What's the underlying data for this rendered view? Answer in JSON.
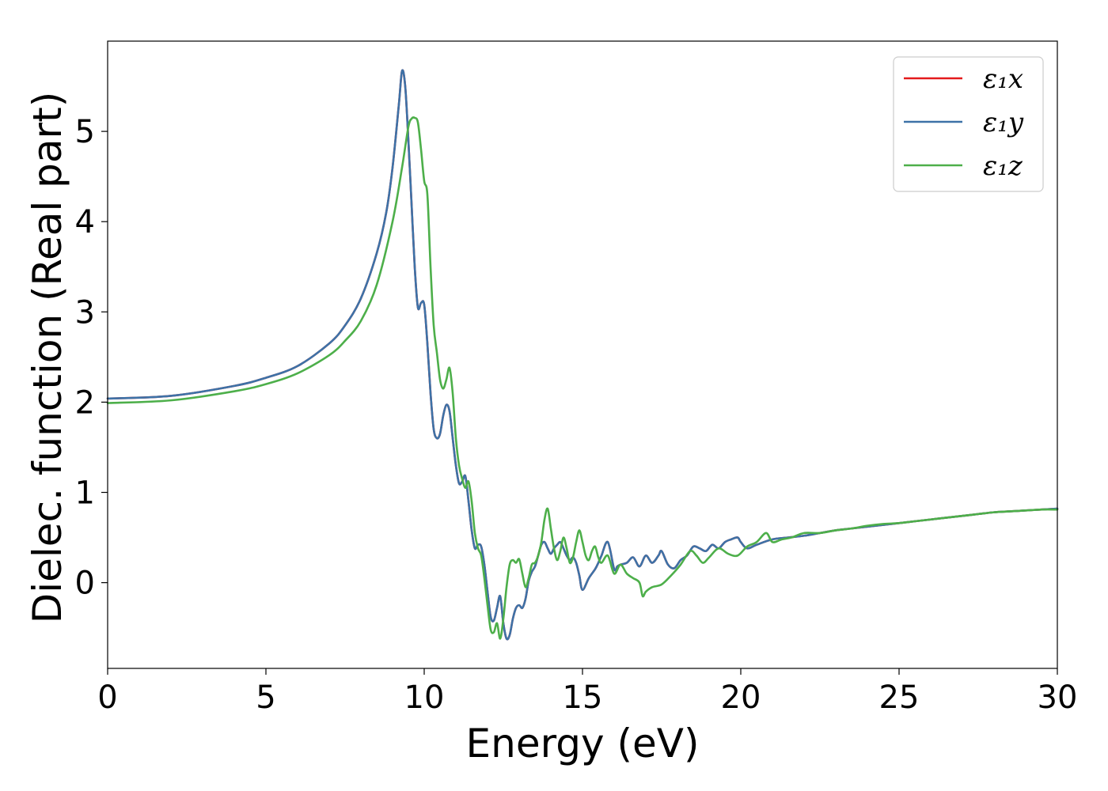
{
  "chart_data": {
    "type": "line",
    "xlabel": "Energy (eV)",
    "ylabel": "Dielec. function (Real part)",
    "xlim": [
      0,
      30
    ],
    "ylim": [
      -0.95,
      6.0
    ],
    "xticks": [
      "0",
      "5",
      "10",
      "15",
      "20",
      "25",
      "30"
    ],
    "yticks": [
      "0",
      "1",
      "2",
      "3",
      "4",
      "5"
    ],
    "grid": false,
    "legend_position": "top-right",
    "series": [
      {
        "name": "ε₁x",
        "color": "#e41a1c",
        "x": [
          0,
          2,
          4,
          5,
          6,
          7,
          7.5,
          8,
          8.5,
          8.8,
          9.0,
          9.2,
          9.3,
          9.4,
          9.5,
          9.6,
          9.7,
          9.8,
          9.9,
          10.0,
          10.1,
          10.2,
          10.3,
          10.4,
          10.5,
          10.6,
          10.7,
          10.8,
          10.9,
          11.0,
          11.1,
          11.2,
          11.3,
          11.4,
          11.5,
          11.6,
          11.7,
          11.8,
          11.9,
          12.0,
          12.1,
          12.2,
          12.3,
          12.4,
          12.5,
          12.6,
          12.7,
          12.8,
          12.9,
          13.0,
          13.1,
          13.2,
          13.3,
          13.4,
          13.5,
          13.6,
          13.7,
          13.8,
          13.9,
          14.0,
          14.1,
          14.2,
          14.3,
          14.4,
          14.5,
          14.6,
          14.7,
          14.8,
          14.9,
          15.0,
          15.2,
          15.4,
          15.5,
          15.6,
          15.8,
          16.0,
          16.1,
          16.2,
          16.4,
          16.6,
          16.8,
          17.0,
          17.2,
          17.4,
          17.5,
          17.7,
          17.9,
          18.1,
          18.3,
          18.5,
          18.7,
          18.9,
          19.1,
          19.3,
          19.5,
          19.7,
          19.9,
          20.0,
          20.2,
          20.5,
          21.0,
          21.5,
          22.0,
          22.5,
          23.0,
          23.5,
          24.0,
          24.5,
          25.0,
          25.5,
          26.0,
          26.5,
          27.0,
          27.5,
          28.0,
          28.5,
          29.0,
          29.5,
          30.0
        ],
        "values": [
          2.04,
          2.07,
          2.18,
          2.27,
          2.4,
          2.65,
          2.85,
          3.15,
          3.65,
          4.1,
          4.6,
          5.3,
          5.67,
          5.5,
          4.9,
          4.2,
          3.5,
          3.05,
          3.1,
          3.08,
          2.65,
          2.1,
          1.7,
          1.6,
          1.65,
          1.85,
          1.97,
          1.9,
          1.6,
          1.3,
          1.1,
          1.12,
          1.18,
          0.9,
          0.58,
          0.38,
          0.42,
          0.4,
          0.2,
          -0.1,
          -0.38,
          -0.42,
          -0.28,
          -0.15,
          -0.45,
          -0.62,
          -0.58,
          -0.4,
          -0.28,
          -0.25,
          -0.28,
          -0.18,
          0.02,
          0.12,
          0.18,
          0.3,
          0.42,
          0.45,
          0.38,
          0.32,
          0.38,
          0.42,
          0.45,
          0.38,
          0.3,
          0.25,
          0.28,
          0.22,
          0.08,
          -0.08,
          0.05,
          0.15,
          0.22,
          0.3,
          0.45,
          0.15,
          0.18,
          0.2,
          0.22,
          0.28,
          0.18,
          0.3,
          0.22,
          0.3,
          0.35,
          0.2,
          0.16,
          0.25,
          0.3,
          0.4,
          0.38,
          0.35,
          0.42,
          0.38,
          0.45,
          0.48,
          0.5,
          0.45,
          0.38,
          0.42,
          0.48,
          0.5,
          0.52,
          0.55,
          0.58,
          0.6,
          0.62,
          0.64,
          0.66,
          0.68,
          0.7,
          0.72,
          0.74,
          0.76,
          0.78,
          0.79,
          0.8,
          0.81,
          0.82
        ]
      },
      {
        "name": "ε₁y",
        "color": "#3d72a7",
        "x": [
          0,
          2,
          4,
          5,
          6,
          7,
          7.5,
          8,
          8.5,
          8.8,
          9.0,
          9.2,
          9.3,
          9.4,
          9.5,
          9.6,
          9.7,
          9.8,
          9.9,
          10.0,
          10.1,
          10.2,
          10.3,
          10.4,
          10.5,
          10.6,
          10.7,
          10.8,
          10.9,
          11.0,
          11.1,
          11.2,
          11.3,
          11.4,
          11.5,
          11.6,
          11.7,
          11.8,
          11.9,
          12.0,
          12.1,
          12.2,
          12.3,
          12.4,
          12.5,
          12.6,
          12.7,
          12.8,
          12.9,
          13.0,
          13.1,
          13.2,
          13.3,
          13.4,
          13.5,
          13.6,
          13.7,
          13.8,
          13.9,
          14.0,
          14.1,
          14.2,
          14.3,
          14.4,
          14.5,
          14.6,
          14.7,
          14.8,
          14.9,
          15.0,
          15.2,
          15.4,
          15.5,
          15.6,
          15.8,
          16.0,
          16.1,
          16.2,
          16.4,
          16.6,
          16.8,
          17.0,
          17.2,
          17.4,
          17.5,
          17.7,
          17.9,
          18.1,
          18.3,
          18.5,
          18.7,
          18.9,
          19.1,
          19.3,
          19.5,
          19.7,
          19.9,
          20.0,
          20.2,
          20.5,
          21.0,
          21.5,
          22.0,
          22.5,
          23.0,
          23.5,
          24.0,
          24.5,
          25.0,
          25.5,
          26.0,
          26.5,
          27.0,
          27.5,
          28.0,
          28.5,
          29.0,
          29.5,
          30.0
        ],
        "values": [
          2.04,
          2.07,
          2.18,
          2.27,
          2.4,
          2.65,
          2.85,
          3.15,
          3.65,
          4.1,
          4.6,
          5.3,
          5.67,
          5.5,
          4.9,
          4.2,
          3.5,
          3.05,
          3.1,
          3.08,
          2.65,
          2.1,
          1.7,
          1.6,
          1.65,
          1.85,
          1.97,
          1.9,
          1.6,
          1.3,
          1.1,
          1.12,
          1.18,
          0.9,
          0.58,
          0.38,
          0.42,
          0.4,
          0.2,
          -0.1,
          -0.38,
          -0.42,
          -0.28,
          -0.15,
          -0.45,
          -0.62,
          -0.58,
          -0.4,
          -0.28,
          -0.25,
          -0.28,
          -0.18,
          0.02,
          0.12,
          0.18,
          0.3,
          0.42,
          0.45,
          0.38,
          0.32,
          0.38,
          0.42,
          0.45,
          0.38,
          0.3,
          0.25,
          0.28,
          0.22,
          0.08,
          -0.08,
          0.05,
          0.15,
          0.22,
          0.3,
          0.45,
          0.15,
          0.18,
          0.2,
          0.22,
          0.28,
          0.18,
          0.3,
          0.22,
          0.3,
          0.35,
          0.2,
          0.16,
          0.25,
          0.3,
          0.4,
          0.38,
          0.35,
          0.42,
          0.38,
          0.45,
          0.48,
          0.5,
          0.45,
          0.38,
          0.42,
          0.48,
          0.5,
          0.52,
          0.55,
          0.58,
          0.6,
          0.62,
          0.64,
          0.66,
          0.68,
          0.7,
          0.72,
          0.74,
          0.76,
          0.78,
          0.79,
          0.8,
          0.81,
          0.82
        ]
      },
      {
        "name": "ε₁z",
        "color": "#4daf4a",
        "x": [
          0,
          2,
          4,
          5,
          6,
          7,
          7.5,
          8,
          8.5,
          9.0,
          9.3,
          9.5,
          9.6,
          9.7,
          9.8,
          9.9,
          10.0,
          10.1,
          10.2,
          10.3,
          10.4,
          10.5,
          10.6,
          10.7,
          10.8,
          10.9,
          11.0,
          11.1,
          11.2,
          11.3,
          11.4,
          11.5,
          11.6,
          11.7,
          11.8,
          11.9,
          12.0,
          12.1,
          12.2,
          12.3,
          12.4,
          12.5,
          12.6,
          12.7,
          12.8,
          12.9,
          13.0,
          13.1,
          13.2,
          13.3,
          13.4,
          13.5,
          13.6,
          13.7,
          13.8,
          13.9,
          14.0,
          14.1,
          14.2,
          14.3,
          14.4,
          14.5,
          14.6,
          14.7,
          14.8,
          14.9,
          15.0,
          15.1,
          15.2,
          15.3,
          15.4,
          15.5,
          15.6,
          15.8,
          16.0,
          16.2,
          16.4,
          16.6,
          16.8,
          16.9,
          17.0,
          17.2,
          17.5,
          17.8,
          18.1,
          18.4,
          18.6,
          18.8,
          19.0,
          19.3,
          19.6,
          19.9,
          20.2,
          20.5,
          20.8,
          21.0,
          21.3,
          21.6,
          22.0,
          22.5,
          23.0,
          23.5,
          24.0,
          24.5,
          25.0,
          25.5,
          26.0,
          26.5,
          27.0,
          27.5,
          28.0,
          28.5,
          29.0,
          29.5,
          30.0
        ],
        "values": [
          1.99,
          2.02,
          2.12,
          2.2,
          2.32,
          2.52,
          2.68,
          2.9,
          3.3,
          4.0,
          4.6,
          5.05,
          5.14,
          5.15,
          5.1,
          4.8,
          4.45,
          4.3,
          3.5,
          2.85,
          2.55,
          2.25,
          2.15,
          2.25,
          2.38,
          2.1,
          1.6,
          1.3,
          1.15,
          1.05,
          1.12,
          0.9,
          0.55,
          0.38,
          0.3,
          0.05,
          -0.25,
          -0.52,
          -0.55,
          -0.45,
          -0.62,
          -0.4,
          -0.05,
          0.2,
          0.25,
          0.22,
          0.26,
          0.1,
          -0.05,
          0.05,
          0.2,
          0.22,
          0.3,
          0.45,
          0.7,
          0.82,
          0.6,
          0.38,
          0.25,
          0.35,
          0.5,
          0.38,
          0.22,
          0.28,
          0.45,
          0.58,
          0.45,
          0.3,
          0.25,
          0.35,
          0.4,
          0.28,
          0.22,
          0.3,
          0.1,
          0.2,
          0.1,
          0.05,
          0.0,
          -0.15,
          -0.1,
          -0.05,
          -0.02,
          0.08,
          0.2,
          0.35,
          0.3,
          0.22,
          0.28,
          0.38,
          0.32,
          0.3,
          0.4,
          0.45,
          0.55,
          0.45,
          0.48,
          0.5,
          0.55,
          0.55,
          0.58,
          0.6,
          0.63,
          0.65,
          0.66,
          0.68,
          0.7,
          0.72,
          0.74,
          0.76,
          0.78,
          0.79,
          0.8,
          0.81,
          0.81
        ]
      }
    ]
  }
}
